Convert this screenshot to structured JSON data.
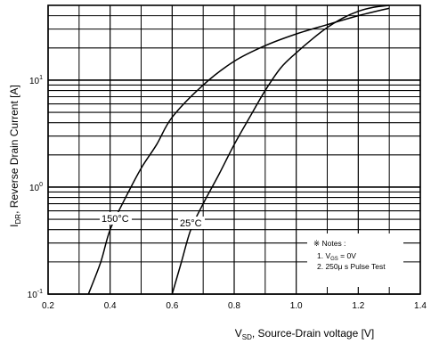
{
  "chart_data": {
    "type": "line",
    "x_axis": {
      "label_main": "V",
      "label_sub": "SD",
      "label_rest": ", Source-Drain voltage [V]",
      "ticks": [
        "0.2",
        "0.4",
        "0.6",
        "0.8",
        "1.0",
        "1.2",
        "1.4"
      ],
      "range": [
        0.2,
        1.4
      ],
      "grid": true
    },
    "y_axis": {
      "label_main": "I",
      "label_sub": "DR",
      "label_rest": ", Reverse Drain Current [A]",
      "scale": "log",
      "range": [
        0.1,
        50
      ],
      "tick_labels": [
        {
          "base": "10",
          "exp": "-1"
        },
        {
          "base": "10",
          "exp": "0"
        },
        {
          "base": "10",
          "exp": "1"
        }
      ],
      "grid": true
    },
    "series": [
      {
        "name": "150°C",
        "points": [
          [
            0.33,
            0.1
          ],
          [
            0.37,
            0.2
          ],
          [
            0.4,
            0.4
          ],
          [
            0.45,
            0.8
          ],
          [
            0.5,
            1.5
          ],
          [
            0.55,
            2.5
          ],
          [
            0.6,
            4.5
          ],
          [
            0.7,
            9
          ],
          [
            0.8,
            15
          ],
          [
            0.9,
            21
          ],
          [
            1.0,
            27
          ],
          [
            1.1,
            33
          ],
          [
            1.2,
            40
          ],
          [
            1.3,
            47
          ]
        ]
      },
      {
        "name": "25°C",
        "points": [
          [
            0.6,
            0.1
          ],
          [
            0.63,
            0.2
          ],
          [
            0.66,
            0.4
          ],
          [
            0.7,
            0.7
          ],
          [
            0.75,
            1.3
          ],
          [
            0.8,
            2.5
          ],
          [
            0.85,
            4.5
          ],
          [
            0.9,
            8
          ],
          [
            0.95,
            13
          ],
          [
            1.0,
            18
          ],
          [
            1.05,
            24
          ],
          [
            1.1,
            31
          ],
          [
            1.15,
            38
          ],
          [
            1.2,
            44
          ],
          [
            1.25,
            48
          ],
          [
            1.3,
            50
          ]
        ]
      }
    ],
    "notes": {
      "title": "※ Notes :",
      "item1_prefix": "1. V",
      "item1_sub": "GS",
      "item1_rest": " = 0V",
      "item2": "2. 250μ s Pulse Test"
    }
  }
}
